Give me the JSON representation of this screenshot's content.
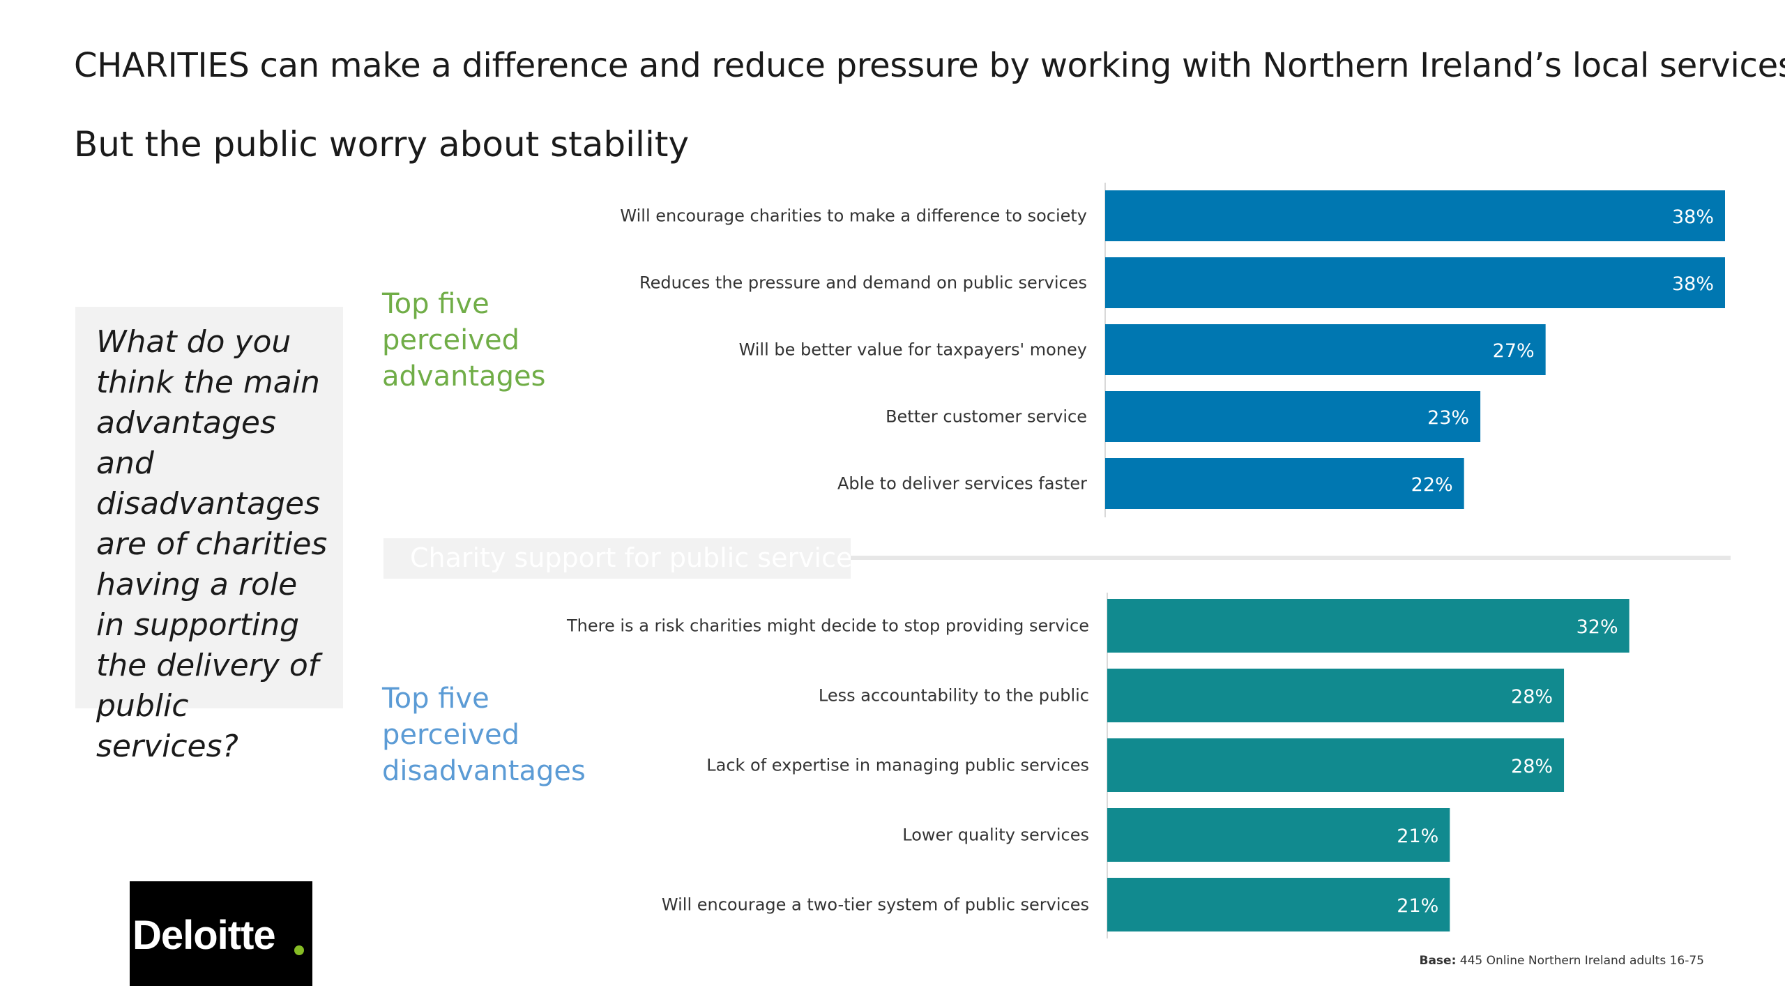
{
  "header": {
    "title_lead": "CHARITIES",
    "title_rest": " can make a difference and reduce pressure by working with Northern Ireland’s local services",
    "subtitle": "But the public worry about stability"
  },
  "question": "What do you think the main advantages and disadvantages are of charities having a role in supporting the delivery of public services?",
  "labels": {
    "advantages": "Top five perceived advantages",
    "disadvantages": "Top five perceived disadvantages",
    "divider": "Charity support for public services"
  },
  "base": {
    "label": "Base:",
    "text": " 445 Online Northern Ireland adults 16-75"
  },
  "logo": {
    "text": "Deloitte",
    "dot_color": "#86bc25"
  },
  "colors": {
    "advantages_bar": "#0077b1",
    "disadvantages_bar": "#118a8f",
    "advantages_label": "#70ad47",
    "disadvantages_label": "#5b9bd5"
  },
  "chart_data": [
    {
      "type": "bar",
      "orientation": "horizontal",
      "name": "Top five perceived advantages",
      "categories": [
        "Will encourage charities to make a difference to society",
        "Reduces the pressure and demand on public services",
        "Will be better value for taxpayers' money",
        "Better customer service",
        "Able to deliver services faster"
      ],
      "values": [
        38,
        38,
        27,
        23,
        22
      ],
      "value_labels": [
        "38%",
        "38%",
        "27%",
        "23%",
        "22%"
      ],
      "unit": "%",
      "xlim": [
        0,
        38
      ],
      "grid": false,
      "color": "#0077b1"
    },
    {
      "type": "bar",
      "orientation": "horizontal",
      "name": "Top five perceived disadvantages",
      "categories": [
        "There is a risk charities might decide to stop providing service",
        "Less accountability to the public",
        "Lack of expertise in managing public services",
        "Lower quality services",
        "Will encourage a two-tier system of public services"
      ],
      "values": [
        32,
        28,
        28,
        21,
        21
      ],
      "value_labels": [
        "32%",
        "28%",
        "28%",
        "21%",
        "21%"
      ],
      "unit": "%",
      "xlim": [
        0,
        38
      ],
      "grid": false,
      "color": "#118a8f"
    }
  ]
}
